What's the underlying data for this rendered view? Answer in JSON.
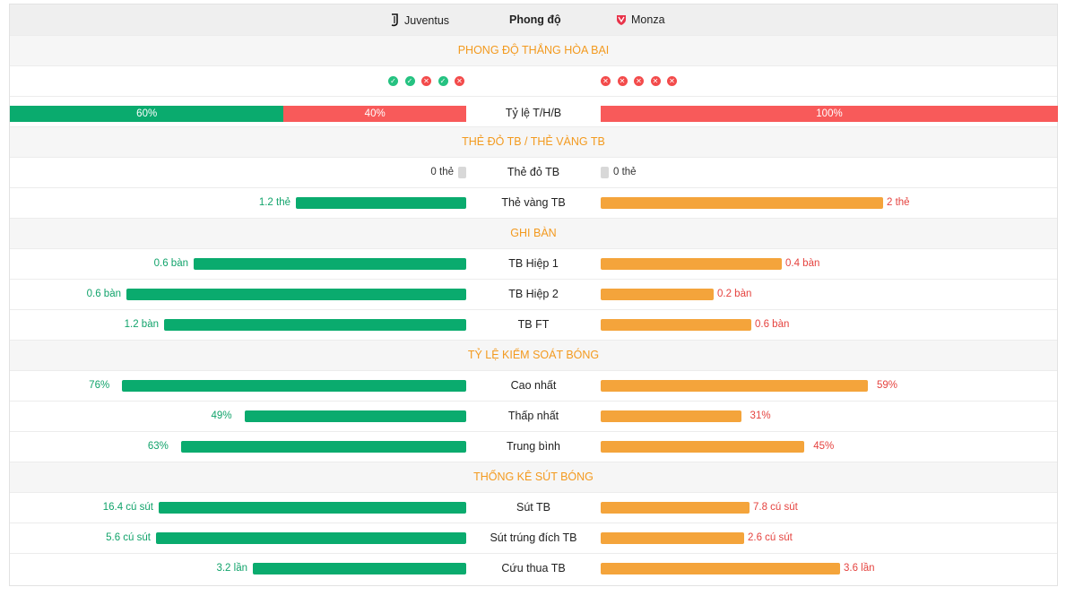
{
  "header": {
    "home_team": "Juventus",
    "away_team": "Monza",
    "title": "Phong độ"
  },
  "form": {
    "section_title": "PHONG ĐỘ THẮNG HÒA BẠI",
    "home_results": [
      "W",
      "W",
      "L",
      "W",
      "L"
    ],
    "away_results": [
      "L",
      "L",
      "L",
      "L",
      "L"
    ],
    "win_symbol": "✓",
    "loss_symbol": "✕",
    "ratio_label": "Tỷ lệ T/H/B",
    "home_win_pct": "60%",
    "home_win_value": 60,
    "home_loss_pct": "40%",
    "home_loss_value": 40,
    "away_loss_pct": "100%",
    "away_loss_value": 100
  },
  "cards": {
    "section_title": "THẺ ĐỎ TB / THẺ VÀNG TB",
    "rows": [
      {
        "label": "Thẻ đỏ TB",
        "home": "0 thẻ",
        "away": "0 thẻ",
        "home_value": 0,
        "away_value": 0
      },
      {
        "label": "Thẻ vàng TB",
        "home": "1.2 thẻ",
        "away": "2 thẻ",
        "home_value": 1.2,
        "away_value": 2
      }
    ]
  },
  "goals": {
    "section_title": "GHI BÀN",
    "rows": [
      {
        "label": "TB Hiệp 1",
        "home": "0.6 bàn",
        "away": "0.4 bàn",
        "home_value": 0.6,
        "away_value": 0.4
      },
      {
        "label": "TB Hiệp 2",
        "home": "0.6 bàn",
        "away": "0.2 bàn",
        "home_value": 0.6,
        "away_value": 0.2
      },
      {
        "label": "TB FT",
        "home": "1.2 bàn",
        "away": "0.6 bàn",
        "home_value": 1.2,
        "away_value": 0.6
      }
    ]
  },
  "possession": {
    "section_title": "TỶ LỆ KIỂM SOÁT BÓNG",
    "rows": [
      {
        "label": "Cao nhất",
        "home": "76%",
        "away": "59%",
        "home_value": 76,
        "away_value": 59
      },
      {
        "label": "Thấp nhất",
        "home": "49%",
        "away": "31%",
        "home_value": 49,
        "away_value": 31
      },
      {
        "label": "Trung bình",
        "home": "63%",
        "away": "45%",
        "home_value": 63,
        "away_value": 45
      }
    ]
  },
  "shots": {
    "section_title": "THỐNG KÊ SÚT BÓNG",
    "rows": [
      {
        "label": "Sút TB",
        "home": "16.4 cú sút",
        "away": "7.8 cú sút",
        "home_value": 16.4,
        "away_value": 7.8
      },
      {
        "label": "Sút trúng đích TB",
        "home": "5.6 cú sút",
        "away": "2.6 cú sút",
        "home_value": 5.6,
        "away_value": 2.6
      },
      {
        "label": "Cứu thua TB",
        "home": "3.2 lần",
        "away": "3.6 lần",
        "home_value": 3.2,
        "away_value": 3.6
      }
    ]
  },
  "colors": {
    "home_bar": "#0aab6e",
    "away_bar": "#f4a43b",
    "loss_bar": "#f85a5a",
    "section_title": "#f39a1f",
    "better_value": "#11a36b",
    "worse_value": "#e5433f"
  }
}
